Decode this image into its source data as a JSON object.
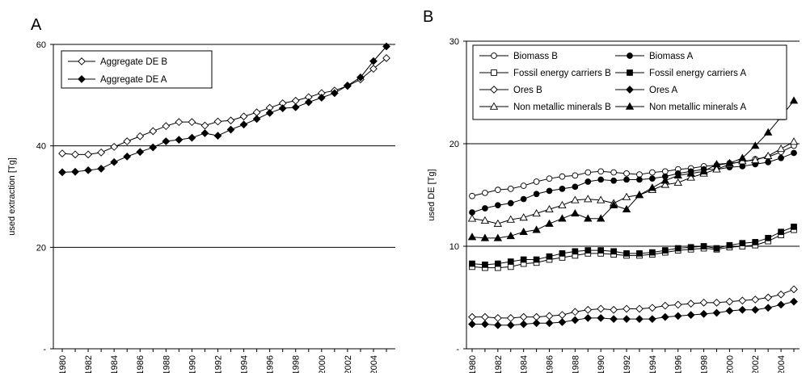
{
  "chart_data": [
    {
      "panel": "A",
      "type": "line",
      "ylabel": "used extraction [Tg]",
      "ylim": [
        0,
        60
      ],
      "y_ticks": [
        {
          "value": 0,
          "label": "-"
        },
        {
          "value": 20,
          "label": "20"
        },
        {
          "value": 40,
          "label": "40"
        },
        {
          "value": 60,
          "label": "60"
        }
      ],
      "grid_values": [
        20,
        40,
        60
      ],
      "legend_placement": "top-left",
      "x": [
        1980,
        1981,
        1982,
        1983,
        1984,
        1985,
        1986,
        1987,
        1988,
        1989,
        1990,
        1991,
        1992,
        1993,
        1994,
        1995,
        1996,
        1997,
        1998,
        1999,
        2000,
        2001,
        2002,
        2003,
        2004,
        2005
      ],
      "x_tick_labels": [
        "1980",
        "1982",
        "1984",
        "1986",
        "1988",
        "1990",
        "1992",
        "1994",
        "1996",
        "1998",
        "2000",
        "2002",
        "2004"
      ],
      "series": [
        {
          "name": "Aggregate DE B",
          "marker": "diamond",
          "fill": "open",
          "values": [
            38.5,
            38.3,
            38.3,
            38.7,
            39.8,
            40.9,
            41.9,
            42.9,
            43.9,
            44.7,
            44.7,
            44.0,
            44.8,
            45.0,
            45.8,
            46.6,
            47.5,
            48.4,
            48.9,
            49.6,
            50.4,
            50.9,
            51.8,
            53.1,
            55.2,
            57.3
          ]
        },
        {
          "name": "Aggregate DE A",
          "marker": "diamond",
          "fill": "solid",
          "values": [
            34.8,
            34.9,
            35.2,
            35.5,
            36.8,
            37.9,
            38.8,
            39.7,
            40.9,
            41.2,
            41.6,
            42.5,
            42.0,
            43.2,
            44.2,
            45.3,
            46.5,
            47.4,
            47.6,
            48.6,
            49.5,
            50.4,
            51.9,
            53.5,
            56.7,
            59.6
          ]
        }
      ]
    },
    {
      "panel": "B",
      "type": "line",
      "ylabel": "used DE [Tg]",
      "ylim": [
        0,
        30
      ],
      "y_ticks": [
        {
          "value": 0,
          "label": "-"
        },
        {
          "value": 10,
          "label": "10"
        },
        {
          "value": 20,
          "label": "20"
        },
        {
          "value": 30,
          "label": "30"
        }
      ],
      "grid_values": [
        10,
        20,
        30
      ],
      "legend_placement": "top",
      "x": [
        1980,
        1981,
        1982,
        1983,
        1984,
        1985,
        1986,
        1987,
        1988,
        1989,
        1990,
        1991,
        1992,
        1993,
        1994,
        1995,
        1996,
        1997,
        1998,
        1999,
        2000,
        2001,
        2002,
        2003,
        2004,
        2005
      ],
      "x_tick_labels": [
        "1980",
        "1982",
        "1984",
        "1986",
        "1988",
        "1990",
        "1992",
        "1994",
        "1996",
        "1998",
        "2000",
        "2002",
        "2004"
      ],
      "series": [
        {
          "name": "Biomass B",
          "marker": "circle",
          "fill": "open",
          "values": [
            14.9,
            15.2,
            15.5,
            15.6,
            15.9,
            16.3,
            16.6,
            16.8,
            16.9,
            17.2,
            17.3,
            17.2,
            17.1,
            17.0,
            17.2,
            17.3,
            17.5,
            17.6,
            17.8,
            17.9,
            18.1,
            18.2,
            18.5,
            18.7,
            19.2,
            19.8
          ]
        },
        {
          "name": "Biomass A",
          "marker": "circle",
          "fill": "solid",
          "values": [
            13.3,
            13.7,
            14.0,
            14.2,
            14.6,
            15.1,
            15.4,
            15.6,
            15.8,
            16.3,
            16.5,
            16.4,
            16.5,
            16.5,
            16.6,
            16.8,
            17.1,
            17.3,
            17.5,
            17.5,
            17.7,
            17.8,
            18.0,
            18.2,
            18.6,
            19.1
          ]
        },
        {
          "name": "Fossil energy carriers B",
          "marker": "square",
          "fill": "open",
          "values": [
            8.0,
            7.9,
            7.9,
            8.0,
            8.3,
            8.4,
            8.7,
            8.9,
            9.1,
            9.3,
            9.3,
            9.2,
            9.1,
            9.1,
            9.2,
            9.4,
            9.6,
            9.7,
            9.8,
            9.7,
            9.9,
            10.0,
            10.1,
            10.5,
            11.1,
            11.6
          ]
        },
        {
          "name": "Fossil energy carriers A",
          "marker": "square",
          "fill": "solid",
          "values": [
            8.3,
            8.2,
            8.3,
            8.5,
            8.7,
            8.7,
            9.0,
            9.3,
            9.5,
            9.6,
            9.6,
            9.5,
            9.3,
            9.3,
            9.4,
            9.6,
            9.8,
            9.9,
            10.0,
            9.8,
            10.1,
            10.3,
            10.4,
            10.8,
            11.4,
            11.9
          ]
        },
        {
          "name": "Ores B",
          "marker": "diamond",
          "fill": "open",
          "values": [
            3.1,
            3.1,
            3.0,
            3.0,
            3.1,
            3.1,
            3.2,
            3.3,
            3.6,
            3.8,
            3.9,
            3.8,
            3.9,
            3.9,
            4.0,
            4.2,
            4.3,
            4.4,
            4.5,
            4.5,
            4.6,
            4.7,
            4.8,
            5.0,
            5.3,
            5.8
          ]
        },
        {
          "name": "Ores A",
          "marker": "diamond",
          "fill": "solid",
          "values": [
            2.4,
            2.4,
            2.3,
            2.3,
            2.4,
            2.5,
            2.5,
            2.6,
            2.8,
            3.0,
            3.0,
            2.9,
            2.9,
            2.9,
            2.9,
            3.1,
            3.2,
            3.3,
            3.4,
            3.5,
            3.7,
            3.8,
            3.8,
            4.0,
            4.3,
            4.6
          ]
        },
        {
          "name": "Non metallic minerals B",
          "marker": "triangle",
          "fill": "open",
          "values": [
            12.7,
            12.5,
            12.2,
            12.6,
            12.8,
            13.2,
            13.6,
            14.0,
            14.5,
            14.6,
            14.5,
            14.2,
            14.8,
            15.0,
            15.5,
            16.0,
            16.2,
            16.7,
            17.1,
            17.5,
            18.0,
            18.3,
            18.4,
            18.8,
            19.5,
            20.2
          ]
        },
        {
          "name": "Non metallic minerals A",
          "marker": "triangle",
          "fill": "solid",
          "values": [
            10.9,
            10.8,
            10.8,
            11.0,
            11.4,
            11.6,
            12.2,
            12.7,
            13.2,
            12.7,
            12.7,
            14.0,
            13.6,
            15.0,
            15.7,
            16.4,
            16.9,
            17.1,
            17.3,
            18.0,
            18.1,
            18.6,
            19.8,
            21.1,
            22.6,
            24.2
          ]
        }
      ]
    }
  ],
  "panels": {
    "a_letter": "A",
    "b_letter": "B"
  }
}
